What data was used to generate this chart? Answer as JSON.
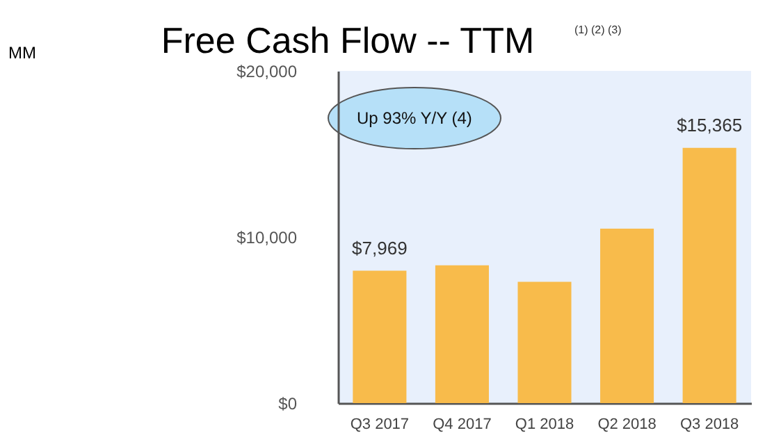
{
  "chart_data": {
    "type": "bar",
    "title": "Free Cash Flow -- TTM",
    "annotations": [
      "(1) (2) (3)",
      "Up 93% Y/Y (4)",
      "MM"
    ],
    "categories": [
      "Q3 2017",
      "Q4 2017",
      "Q1 2018",
      "Q2 2018",
      "Q3 2018"
    ],
    "values": [
      7969,
      8300,
      7300,
      10500,
      15365
    ],
    "value_labels": [
      "$7,969",
      null,
      null,
      null,
      "$15,365"
    ],
    "color": "#f8bb4b",
    "ylim": [
      0,
      20000
    ],
    "yticks": [
      {
        "value": 0,
        "label": "$0"
      },
      {
        "value": 10000,
        "label": "$10,000"
      },
      {
        "value": 20000,
        "label": "$20,000"
      }
    ],
    "grid": false
  }
}
